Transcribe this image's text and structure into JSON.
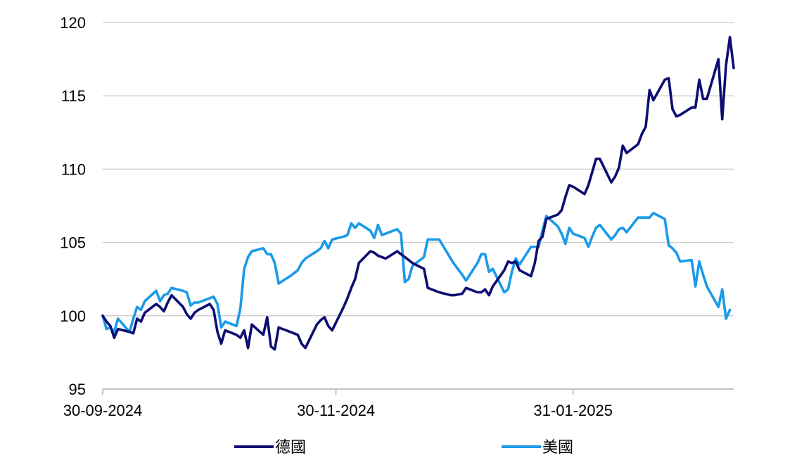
{
  "chart_data": {
    "type": "line",
    "title": "",
    "xlabel": "",
    "ylabel": "",
    "ylim": [
      95,
      120
    ],
    "yticks": [
      95,
      100,
      105,
      110,
      115,
      120
    ],
    "xlim": [
      "2024-09-30",
      "2025-03-14"
    ],
    "xticks": [
      "30-09-2024",
      "30-11-2024",
      "31-01-2025"
    ],
    "grid": "horizontal",
    "legend_position": "bottom",
    "series": [
      {
        "name": "德國",
        "color": "#0d0d73",
        "points": [
          [
            "2024-09-30",
            100.0
          ],
          [
            "2024-10-01",
            99.6
          ],
          [
            "2024-10-02",
            99.3
          ],
          [
            "2024-10-03",
            98.5
          ],
          [
            "2024-10-04",
            99.1
          ],
          [
            "2024-10-07",
            98.9
          ],
          [
            "2024-10-08",
            98.8
          ],
          [
            "2024-10-09",
            99.8
          ],
          [
            "2024-10-10",
            99.6
          ],
          [
            "2024-10-11",
            100.2
          ],
          [
            "2024-10-14",
            100.8
          ],
          [
            "2024-10-15",
            100.6
          ],
          [
            "2024-10-16",
            100.3
          ],
          [
            "2024-10-17",
            100.9
          ],
          [
            "2024-10-18",
            101.4
          ],
          [
            "2024-10-21",
            100.6
          ],
          [
            "2024-10-22",
            100.1
          ],
          [
            "2024-10-23",
            99.8
          ],
          [
            "2024-10-24",
            100.2
          ],
          [
            "2024-10-25",
            100.4
          ],
          [
            "2024-10-28",
            100.8
          ],
          [
            "2024-10-29",
            100.4
          ],
          [
            "2024-10-30",
            98.9
          ],
          [
            "2024-10-31",
            98.1
          ],
          [
            "2024-11-01",
            99.0
          ],
          [
            "2024-11-04",
            98.7
          ],
          [
            "2024-11-05",
            98.5
          ],
          [
            "2024-11-06",
            99.0
          ],
          [
            "2024-11-07",
            97.8
          ],
          [
            "2024-11-08",
            99.4
          ],
          [
            "2024-11-11",
            98.7
          ],
          [
            "2024-11-12",
            99.9
          ],
          [
            "2024-11-13",
            97.9
          ],
          [
            "2024-11-14",
            97.7
          ],
          [
            "2024-11-15",
            99.2
          ],
          [
            "2024-11-18",
            98.9
          ],
          [
            "2024-11-19",
            98.8
          ],
          [
            "2024-11-20",
            98.7
          ],
          [
            "2024-11-21",
            98.1
          ],
          [
            "2024-11-22",
            97.8
          ],
          [
            "2024-11-25",
            99.4
          ],
          [
            "2024-11-26",
            99.7
          ],
          [
            "2024-11-27",
            99.9
          ],
          [
            "2024-11-28",
            99.3
          ],
          [
            "2024-11-29",
            99.0
          ],
          [
            "2024-12-02",
            100.6
          ],
          [
            "2024-12-03",
            101.2
          ],
          [
            "2024-12-04",
            101.9
          ],
          [
            "2024-12-05",
            102.5
          ],
          [
            "2024-12-06",
            103.6
          ],
          [
            "2024-12-09",
            104.4
          ],
          [
            "2024-12-10",
            104.3
          ],
          [
            "2024-12-11",
            104.1
          ],
          [
            "2024-12-12",
            104.0
          ],
          [
            "2024-12-13",
            103.9
          ],
          [
            "2024-12-16",
            104.4
          ],
          [
            "2024-12-17",
            104.2
          ],
          [
            "2024-12-18",
            104.0
          ],
          [
            "2024-12-19",
            103.8
          ],
          [
            "2024-12-20",
            103.6
          ],
          [
            "2024-12-23",
            103.2
          ],
          [
            "2024-12-24",
            101.9
          ],
          [
            "2024-12-27",
            101.6
          ],
          [
            "2024-12-30",
            101.4
          ],
          [
            "2024-12-31",
            101.4
          ],
          [
            "2025-01-02",
            101.5
          ],
          [
            "2025-01-03",
            101.9
          ],
          [
            "2025-01-06",
            101.6
          ],
          [
            "2025-01-07",
            101.6
          ],
          [
            "2025-01-08",
            101.8
          ],
          [
            "2025-01-09",
            101.4
          ],
          [
            "2025-01-10",
            102.0
          ],
          [
            "2025-01-13",
            103.1
          ],
          [
            "2025-01-14",
            103.7
          ],
          [
            "2025-01-15",
            103.6
          ],
          [
            "2025-01-16",
            103.7
          ],
          [
            "2025-01-17",
            103.1
          ],
          [
            "2025-01-20",
            102.7
          ],
          [
            "2025-01-21",
            103.6
          ],
          [
            "2025-01-22",
            105.1
          ],
          [
            "2025-01-23",
            105.4
          ],
          [
            "2025-01-24",
            106.6
          ],
          [
            "2025-01-27",
            106.9
          ],
          [
            "2025-01-28",
            107.2
          ],
          [
            "2025-01-29",
            108.1
          ],
          [
            "2025-01-30",
            108.9
          ],
          [
            "2025-01-31",
            108.8
          ],
          [
            "2025-02-03",
            108.3
          ],
          [
            "2025-02-04",
            108.9
          ],
          [
            "2025-02-05",
            109.8
          ],
          [
            "2025-02-06",
            110.7
          ],
          [
            "2025-02-07",
            110.7
          ],
          [
            "2025-02-10",
            109.1
          ],
          [
            "2025-02-11",
            109.5
          ],
          [
            "2025-02-12",
            110.1
          ],
          [
            "2025-02-13",
            111.6
          ],
          [
            "2025-02-14",
            111.1
          ],
          [
            "2025-02-17",
            111.7
          ],
          [
            "2025-02-18",
            112.4
          ],
          [
            "2025-02-19",
            112.9
          ],
          [
            "2025-02-20",
            115.4
          ],
          [
            "2025-02-21",
            114.7
          ],
          [
            "2025-02-24",
            116.1
          ],
          [
            "2025-02-25",
            116.2
          ],
          [
            "2025-02-26",
            114.1
          ],
          [
            "2025-02-27",
            113.6
          ],
          [
            "2025-02-28",
            113.7
          ],
          [
            "2025-03-03",
            114.2
          ],
          [
            "2025-03-04",
            114.2
          ],
          [
            "2025-03-05",
            116.1
          ],
          [
            "2025-03-06",
            114.8
          ],
          [
            "2025-03-07",
            114.8
          ],
          [
            "2025-03-10",
            117.5
          ],
          [
            "2025-03-11",
            113.4
          ],
          [
            "2025-03-12",
            117.1
          ],
          [
            "2025-03-13",
            119.0
          ],
          [
            "2025-03-14",
            116.9
          ]
        ]
      },
      {
        "name": "美國",
        "color": "#1a9ae8",
        "points": [
          [
            "2024-09-30",
            100.0
          ],
          [
            "2024-10-01",
            99.1
          ],
          [
            "2024-10-02",
            99.2
          ],
          [
            "2024-10-03",
            98.9
          ],
          [
            "2024-10-04",
            99.8
          ],
          [
            "2024-10-07",
            98.9
          ],
          [
            "2024-10-08",
            99.8
          ],
          [
            "2024-10-09",
            100.6
          ],
          [
            "2024-10-10",
            100.4
          ],
          [
            "2024-10-11",
            101.0
          ],
          [
            "2024-10-14",
            101.7
          ],
          [
            "2024-10-15",
            101.0
          ],
          [
            "2024-10-16",
            101.4
          ],
          [
            "2024-10-17",
            101.5
          ],
          [
            "2024-10-18",
            101.9
          ],
          [
            "2024-10-21",
            101.7
          ],
          [
            "2024-10-22",
            101.6
          ],
          [
            "2024-10-23",
            100.7
          ],
          [
            "2024-10-24",
            100.9
          ],
          [
            "2024-10-25",
            100.9
          ],
          [
            "2024-10-28",
            101.2
          ],
          [
            "2024-10-29",
            101.3
          ],
          [
            "2024-10-30",
            100.8
          ],
          [
            "2024-10-31",
            99.2
          ],
          [
            "2024-11-01",
            99.6
          ],
          [
            "2024-11-04",
            99.3
          ],
          [
            "2024-11-05",
            100.5
          ],
          [
            "2024-11-06",
            103.2
          ],
          [
            "2024-11-07",
            104.0
          ],
          [
            "2024-11-08",
            104.4
          ],
          [
            "2024-11-11",
            104.6
          ],
          [
            "2024-11-12",
            104.2
          ],
          [
            "2024-11-13",
            104.2
          ],
          [
            "2024-11-14",
            103.6
          ],
          [
            "2024-11-15",
            102.2
          ],
          [
            "2024-11-18",
            102.7
          ],
          [
            "2024-11-19",
            102.9
          ],
          [
            "2024-11-20",
            103.1
          ],
          [
            "2024-11-21",
            103.6
          ],
          [
            "2024-11-22",
            103.9
          ],
          [
            "2024-11-25",
            104.4
          ],
          [
            "2024-11-26",
            104.6
          ],
          [
            "2024-11-27",
            105.1
          ],
          [
            "2024-11-28",
            104.6
          ],
          [
            "2024-11-29",
            105.2
          ],
          [
            "2024-12-02",
            105.4
          ],
          [
            "2024-12-03",
            105.5
          ],
          [
            "2024-12-04",
            106.3
          ],
          [
            "2024-12-05",
            106.0
          ],
          [
            "2024-12-06",
            106.3
          ],
          [
            "2024-12-09",
            105.8
          ],
          [
            "2024-12-10",
            105.3
          ],
          [
            "2024-12-11",
            106.2
          ],
          [
            "2024-12-12",
            105.5
          ],
          [
            "2024-12-13",
            105.6
          ],
          [
            "2024-12-16",
            105.9
          ],
          [
            "2024-12-17",
            105.6
          ],
          [
            "2024-12-18",
            102.3
          ],
          [
            "2024-12-19",
            102.5
          ],
          [
            "2024-12-20",
            103.4
          ],
          [
            "2024-12-23",
            104.0
          ],
          [
            "2024-12-24",
            105.2
          ],
          [
            "2024-12-27",
            105.2
          ],
          [
            "2024-12-30",
            103.9
          ],
          [
            "2024-12-31",
            103.5
          ],
          [
            "2025-01-02",
            102.8
          ],
          [
            "2025-01-03",
            102.4
          ],
          [
            "2025-01-06",
            103.6
          ],
          [
            "2025-01-07",
            104.2
          ],
          [
            "2025-01-08",
            104.2
          ],
          [
            "2025-01-09",
            103.0
          ],
          [
            "2025-01-10",
            103.2
          ],
          [
            "2025-01-13",
            101.6
          ],
          [
            "2025-01-14",
            101.8
          ],
          [
            "2025-01-15",
            103.0
          ],
          [
            "2025-01-16",
            103.9
          ],
          [
            "2025-01-17",
            103.5
          ],
          [
            "2025-01-20",
            104.7
          ],
          [
            "2025-01-21",
            104.7
          ],
          [
            "2025-01-22",
            104.7
          ],
          [
            "2025-01-23",
            105.8
          ],
          [
            "2025-01-24",
            106.8
          ],
          [
            "2025-01-27",
            106.1
          ],
          [
            "2025-01-28",
            105.6
          ],
          [
            "2025-01-29",
            104.9
          ],
          [
            "2025-01-30",
            106.0
          ],
          [
            "2025-01-31",
            105.6
          ],
          [
            "2025-02-03",
            105.3
          ],
          [
            "2025-02-04",
            104.7
          ],
          [
            "2025-02-05",
            105.4
          ],
          [
            "2025-02-06",
            106.0
          ],
          [
            "2025-02-07",
            106.2
          ],
          [
            "2025-02-10",
            105.2
          ],
          [
            "2025-02-11",
            105.5
          ],
          [
            "2025-02-12",
            105.9
          ],
          [
            "2025-02-13",
            106.0
          ],
          [
            "2025-02-14",
            105.7
          ],
          [
            "2025-02-17",
            106.7
          ],
          [
            "2025-02-18",
            106.7
          ],
          [
            "2025-02-19",
            106.7
          ],
          [
            "2025-02-20",
            106.7
          ],
          [
            "2025-02-21",
            107.0
          ],
          [
            "2025-02-24",
            106.6
          ],
          [
            "2025-02-25",
            104.8
          ],
          [
            "2025-02-26",
            104.6
          ],
          [
            "2025-02-27",
            104.3
          ],
          [
            "2025-02-28",
            103.7
          ],
          [
            "2025-03-03",
            103.8
          ],
          [
            "2025-03-04",
            102.0
          ],
          [
            "2025-03-05",
            103.7
          ],
          [
            "2025-03-06",
            102.8
          ],
          [
            "2025-03-07",
            102.0
          ],
          [
            "2025-03-10",
            100.6
          ],
          [
            "2025-03-11",
            101.8
          ],
          [
            "2025-03-12",
            99.8
          ],
          [
            "2025-03-13",
            100.4
          ]
        ]
      }
    ]
  }
}
